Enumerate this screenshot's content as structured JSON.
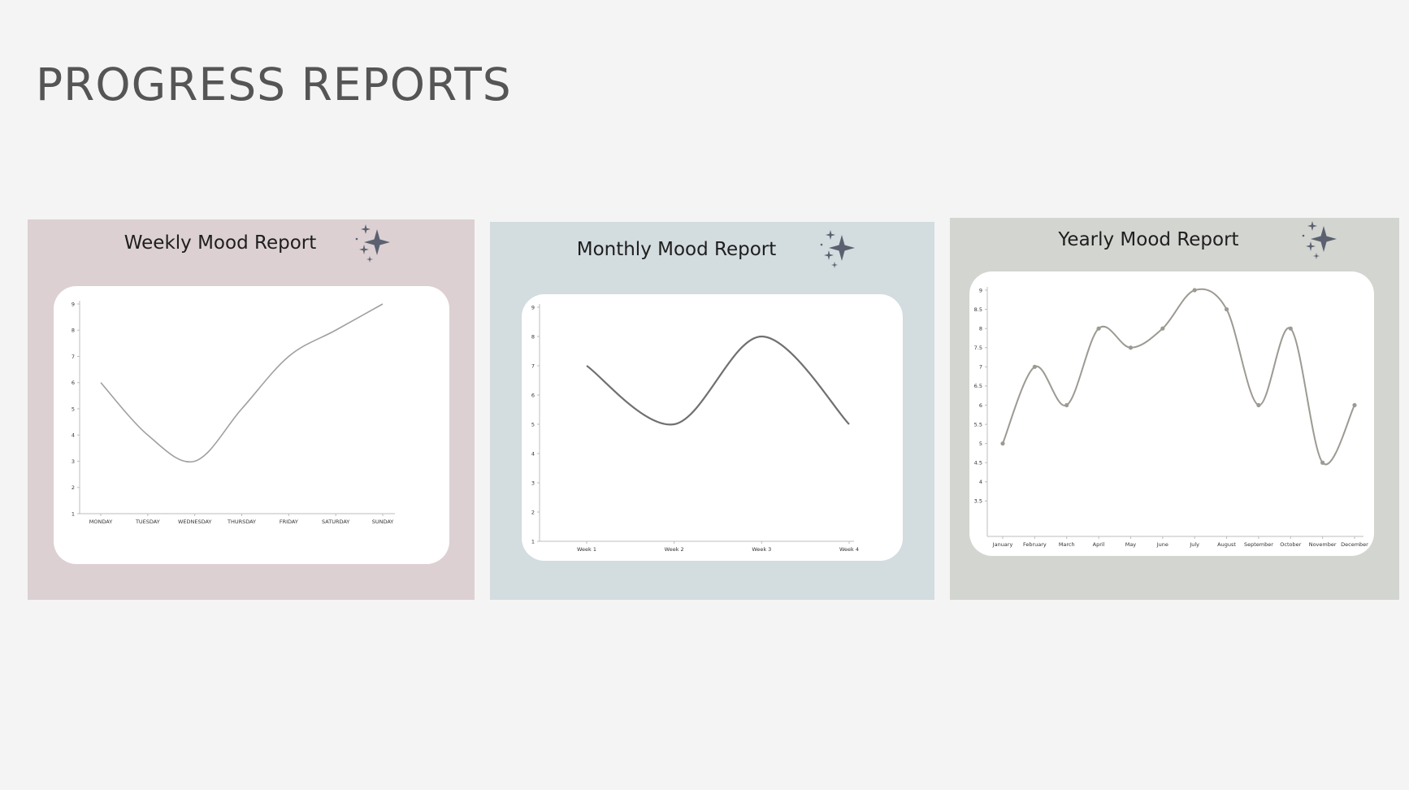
{
  "page": {
    "title": "PROGRESS REPORTS"
  },
  "colors": {
    "weekly_panel": "#dcd0d2",
    "monthly_panel": "#d3dcdf",
    "yearly_panel": "#d3d5d0",
    "sparkle": "#5b6170",
    "line": "#a0a0a0",
    "monthly_line": "#707070",
    "yearly_line": "#9c9a92"
  },
  "icons": {
    "sparkle": "sparkle-icon"
  },
  "chart_data": [
    {
      "type": "line",
      "title": "Weekly Mood Report",
      "categories": [
        "MONDAY",
        "TUESDAY",
        "WEDNESDAY",
        "THURSDAY",
        "FRIDAY",
        "SATURDAY",
        "SUNDAY"
      ],
      "values": [
        6,
        4,
        3,
        5,
        7,
        8,
        9
      ],
      "ylim": [
        1,
        9
      ],
      "yticks": [
        "1",
        "2",
        "3",
        "4",
        "5",
        "6",
        "7",
        "8",
        "9"
      ],
      "markers": false,
      "grid": false
    },
    {
      "type": "line",
      "title": "Monthly Mood Report",
      "categories": [
        "Week 1",
        "Week 2",
        "Week 3",
        "Week 4"
      ],
      "values": [
        7,
        5,
        8,
        5
      ],
      "ylim": [
        1,
        9
      ],
      "yticks": [
        "1",
        "2",
        "3",
        "4",
        "5",
        "6",
        "7",
        "8",
        "9"
      ],
      "markers": false,
      "grid": false
    },
    {
      "type": "line",
      "title": "Yearly Mood Report",
      "categories": [
        "January",
        "February",
        "March",
        "April",
        "May",
        "June",
        "July",
        "August",
        "September",
        "October",
        "November",
        "December"
      ],
      "values": [
        5,
        7,
        6,
        8,
        7.5,
        8,
        9,
        8.5,
        6,
        8,
        4.5,
        6
      ],
      "ylim": [
        3,
        9
      ],
      "yticks": [
        "3.5",
        "4",
        "4.5",
        "5",
        "5.5",
        "6",
        "6.5",
        "7",
        "7.5",
        "8",
        "8.5",
        "9"
      ],
      "markers": true,
      "grid": false
    }
  ]
}
